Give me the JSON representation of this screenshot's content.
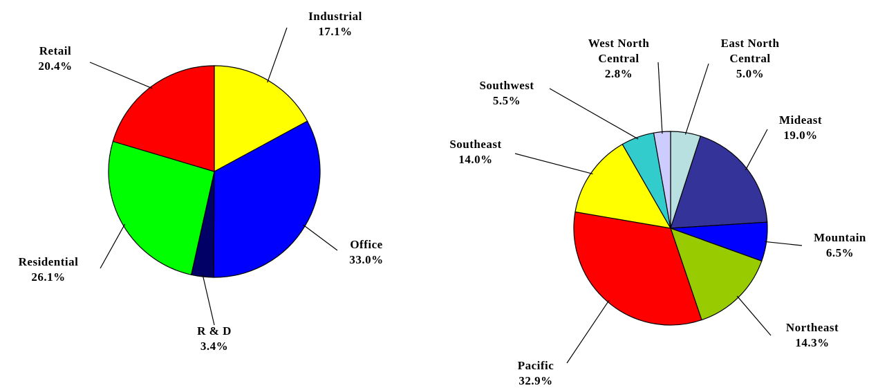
{
  "chart_data": [
    {
      "type": "pie",
      "categories": [
        "Industrial",
        "Office",
        "R & D",
        "Residential",
        "Retail"
      ],
      "values": [
        17.1,
        33.0,
        3.4,
        26.1,
        20.4
      ],
      "value_labels": [
        "17.1%",
        "33.0%",
        "3.4%",
        "26.1%",
        "20.4%"
      ],
      "colors": [
        "#ffff00",
        "#0000ff",
        "#000066",
        "#00ff00",
        "#ff0000"
      ]
    },
    {
      "type": "pie",
      "categories": [
        "East North Central",
        "Mideast",
        "Mountain",
        "Northeast",
        "Pacific",
        "Southeast",
        "Southwest",
        "West North Central"
      ],
      "values": [
        5.0,
        19.0,
        6.5,
        14.3,
        32.9,
        14.0,
        5.5,
        2.8
      ],
      "value_labels": [
        "5.0%",
        "19.0%",
        "6.5%",
        "14.3%",
        "32.9%",
        "14.0%",
        "5.5%",
        "2.8%"
      ],
      "colors": [
        "#b8e0e0",
        "#333399",
        "#0000ff",
        "#99cc00",
        "#ff0000",
        "#ffff00",
        "#33cccc",
        "#ccccff"
      ]
    }
  ]
}
